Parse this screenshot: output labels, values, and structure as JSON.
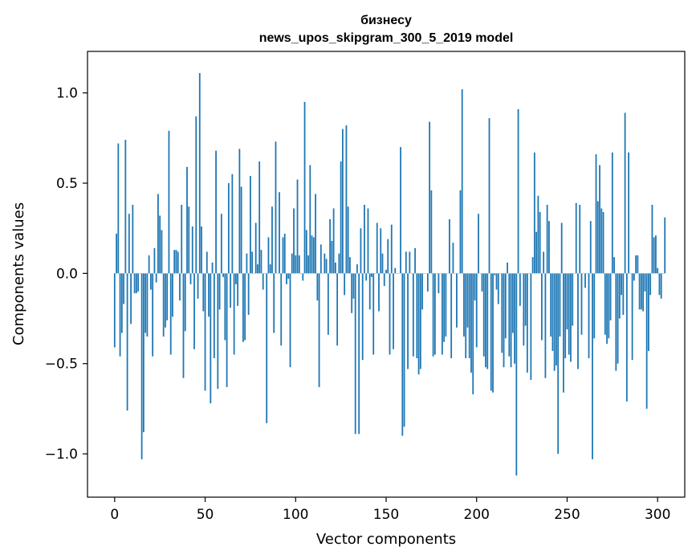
{
  "chart_data": {
    "type": "bar",
    "title_line1": "бизнесу",
    "title_line2": "news_upos_skipgram_300_5_2019 model",
    "xlabel": "Vector components",
    "ylabel": "Components values",
    "xlim": [
      -15,
      315
    ],
    "ylim": [
      -1.24,
      1.23
    ],
    "xticks": [
      0,
      50,
      100,
      150,
      200,
      250,
      300
    ],
    "xtick_labels": [
      "0",
      "50",
      "100",
      "150",
      "200",
      "250",
      "300"
    ],
    "yticks": [
      -1.0,
      -0.5,
      0.0,
      0.5,
      1.0
    ],
    "ytick_labels": [
      "−1.0",
      "−0.5",
      "0.0",
      "0.5",
      "1.0"
    ],
    "bar_color": "#1f77b4",
    "grid": false,
    "values": [
      -0.41,
      0.22,
      0.72,
      -0.46,
      -0.33,
      -0.17,
      0.74,
      -0.76,
      0.33,
      -0.28,
      0.38,
      -0.11,
      -0.11,
      -0.1,
      0.0,
      -1.03,
      -0.88,
      -0.33,
      -0.35,
      0.1,
      -0.09,
      -0.46,
      0.14,
      -0.05,
      0.44,
      0.32,
      0.24,
      -0.35,
      -0.3,
      -0.26,
      0.79,
      -0.45,
      -0.24,
      0.13,
      0.13,
      0.12,
      -0.15,
      0.38,
      -0.58,
      -0.32,
      0.59,
      0.37,
      -0.06,
      0.26,
      -0.42,
      0.87,
      -0.14,
      1.11,
      0.26,
      -0.21,
      -0.65,
      0.12,
      -0.24,
      -0.72,
      0.06,
      -0.47,
      0.68,
      -0.64,
      -0.2,
      0.33,
      -0.02,
      -0.37,
      -0.63,
      0.5,
      -0.19,
      0.55,
      -0.45,
      -0.06,
      -0.18,
      0.69,
      0.48,
      -0.38,
      -0.37,
      0.11,
      -0.23,
      0.54,
      0.12,
      0.0,
      0.28,
      0.05,
      0.62,
      0.13,
      -0.09,
      0.0,
      -0.83,
      0.2,
      0.05,
      0.37,
      -0.33,
      0.73,
      0.0,
      0.45,
      -0.4,
      0.2,
      0.22,
      -0.06,
      -0.03,
      -0.52,
      0.11,
      0.36,
      0.1,
      0.52,
      0.1,
      0.0,
      -0.04,
      0.95,
      0.24,
      0.1,
      0.6,
      0.21,
      0.2,
      0.44,
      -0.15,
      -0.63,
      0.16,
      0.0,
      0.11,
      0.08,
      -0.34,
      0.3,
      0.18,
      0.36,
      0.06,
      -0.4,
      0.11,
      0.62,
      0.8,
      -0.12,
      0.82,
      0.37,
      0.09,
      -0.22,
      -0.14,
      -0.89,
      0.05,
      -0.89,
      0.25,
      -0.48,
      0.38,
      -0.04,
      0.36,
      -0.2,
      -0.02,
      -0.45,
      0.0,
      0.28,
      -0.21,
      0.25,
      0.11,
      -0.07,
      0.02,
      0.19,
      -0.45,
      0.27,
      -0.42,
      0.03,
      0.0,
      0.0,
      0.7,
      -0.9,
      -0.85,
      0.12,
      -0.53,
      0.12,
      0.0,
      -0.46,
      0.14,
      -0.47,
      -0.56,
      -0.53,
      -0.2,
      0.0,
      0.0,
      -0.1,
      0.84,
      0.46,
      -0.46,
      -0.45,
      0.0,
      -0.11,
      0.0,
      -0.45,
      -0.38,
      -0.35,
      0.0,
      0.3,
      -0.47,
      0.17,
      0.0,
      -0.3,
      0.0,
      0.46,
      1.02,
      -0.35,
      -0.47,
      -0.3,
      -0.47,
      -0.55,
      -0.67,
      -0.15,
      -0.41,
      0.33,
      0.0,
      -0.1,
      -0.46,
      -0.52,
      -0.53,
      0.86,
      -0.65,
      -0.66,
      -0.01,
      -0.09,
      -0.17,
      0.0,
      -0.44,
      -0.52,
      -0.36,
      0.06,
      -0.46,
      -0.52,
      -0.33,
      -0.5,
      -1.12,
      0.91,
      -0.18,
      0.0,
      -0.4,
      -0.29,
      -0.55,
      0.0,
      -0.59,
      0.09,
      0.67,
      0.23,
      0.43,
      0.34,
      -0.37,
      0.12,
      -0.58,
      0.38,
      0.29,
      -0.35,
      -0.43,
      -0.54,
      -0.51,
      -1.0,
      -0.35,
      0.28,
      -0.66,
      -0.47,
      -0.31,
      -0.45,
      -0.49,
      -0.29,
      0.0,
      0.39,
      -0.53,
      0.38,
      -0.34,
      0.0,
      -0.08,
      0.0,
      -0.47,
      0.29,
      -1.03,
      -0.36,
      0.66,
      0.4,
      0.6,
      0.36,
      0.34,
      -0.34,
      -0.39,
      -0.36,
      -0.26,
      0.67,
      0.09,
      -0.54,
      -0.5,
      -0.25,
      -0.12,
      -0.23,
      0.89,
      -0.71,
      0.67,
      0.0,
      -0.48,
      -0.04,
      0.1,
      0.1,
      -0.2,
      -0.2,
      -0.21,
      -0.1,
      -0.75,
      -0.43,
      -0.12,
      0.38,
      0.2,
      0.21,
      0.03,
      -0.12,
      -0.14,
      0.0,
      0.31
    ]
  }
}
